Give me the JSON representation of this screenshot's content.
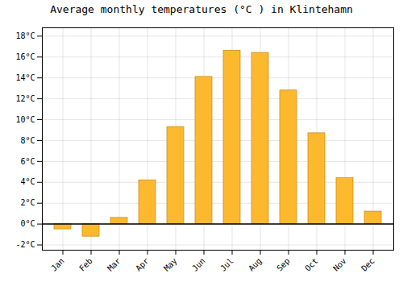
{
  "chart_data": {
    "type": "bar",
    "title": "Average monthly temperatures (°C ) in Klintehamn",
    "categories": [
      "Jan",
      "Feb",
      "Mar",
      "Apr",
      "May",
      "Jun",
      "Jul",
      "Aug",
      "Sep",
      "Oct",
      "Nov",
      "Dec"
    ],
    "values": [
      -0.5,
      -1.2,
      0.6,
      4.2,
      9.3,
      14.1,
      16.6,
      16.4,
      12.8,
      8.7,
      4.4,
      1.2
    ],
    "color": "#FDB92E",
    "ylim": [
      -2.5,
      18.8
    ],
    "yticks": [
      {
        "value": -2,
        "label": "-2°C"
      },
      {
        "value": 0,
        "label": "0°C"
      },
      {
        "value": 2,
        "label": "2°C"
      },
      {
        "value": 4,
        "label": "4°C"
      },
      {
        "value": 6,
        "label": "6°C"
      },
      {
        "value": 8,
        "label": "8°C"
      },
      {
        "value": 10,
        "label": "10°C"
      },
      {
        "value": 12,
        "label": "12°C"
      },
      {
        "value": 14,
        "label": "14°C"
      },
      {
        "value": 16,
        "label": "16°C"
      },
      {
        "value": 18,
        "label": "18°C"
      }
    ],
    "grid": true
  }
}
